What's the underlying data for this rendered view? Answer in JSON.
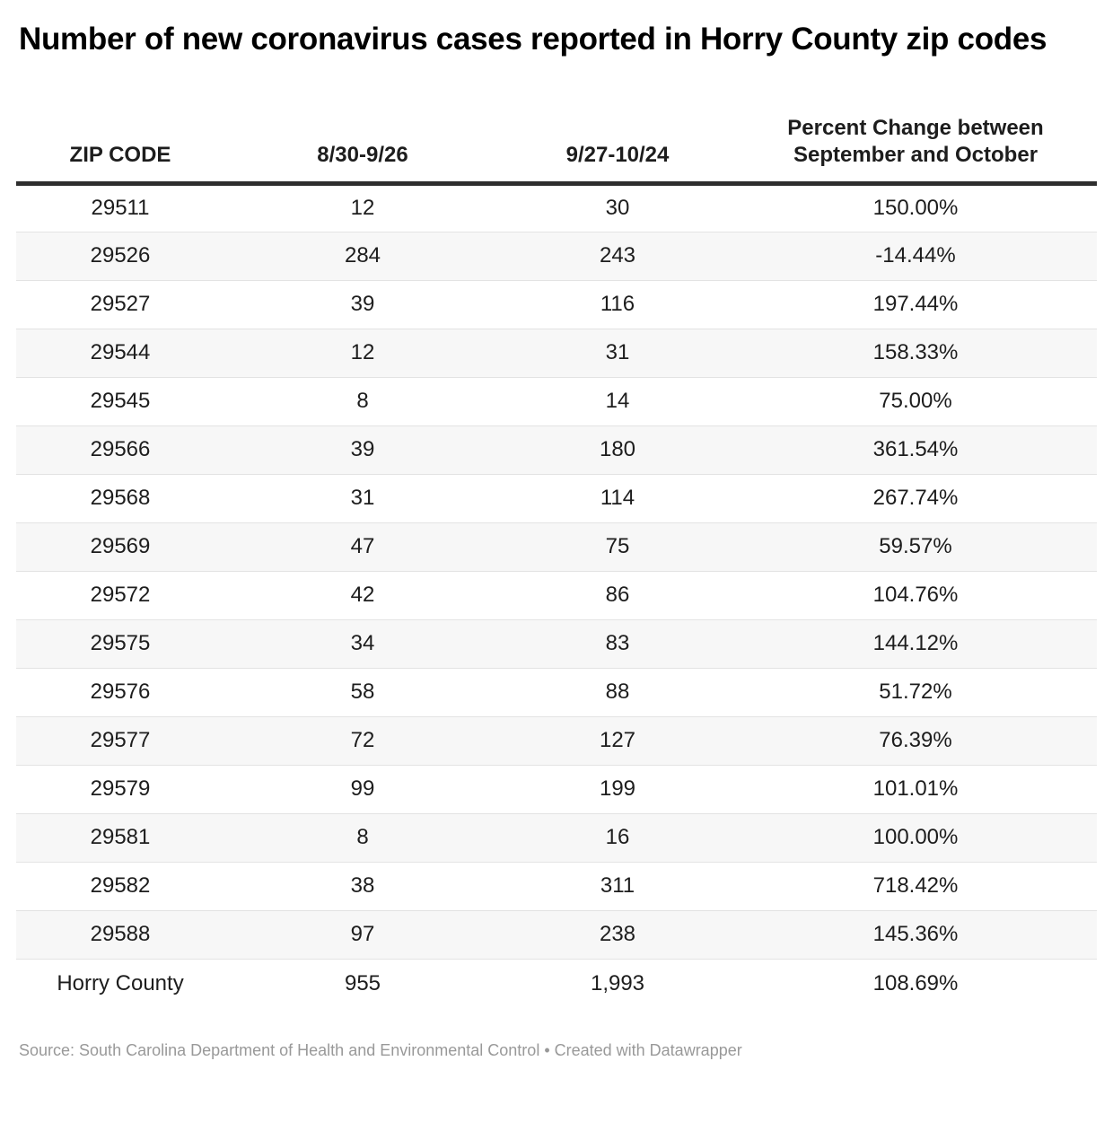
{
  "title": "Number of new coronavirus cases reported in Horry County zip codes",
  "chart_data": {
    "type": "table",
    "title": "Number of new coronavirus cases reported in Horry County zip codes",
    "columns": [
      "ZIP CODE",
      "8/30-9/26",
      "9/27-10/24",
      "Percent Change between September and October"
    ],
    "rows": [
      [
        "29511",
        "12",
        "30",
        "150.00%"
      ],
      [
        "29526",
        "284",
        "243",
        "-14.44%"
      ],
      [
        "29527",
        "39",
        "116",
        "197.44%"
      ],
      [
        "29544",
        "12",
        "31",
        "158.33%"
      ],
      [
        "29545",
        "8",
        "14",
        "75.00%"
      ],
      [
        "29566",
        "39",
        "180",
        "361.54%"
      ],
      [
        "29568",
        "31",
        "114",
        "267.74%"
      ],
      [
        "29569",
        "47",
        "75",
        "59.57%"
      ],
      [
        "29572",
        "42",
        "86",
        "104.76%"
      ],
      [
        "29575",
        "34",
        "83",
        "144.12%"
      ],
      [
        "29576",
        "58",
        "88",
        "51.72%"
      ],
      [
        "29577",
        "72",
        "127",
        "76.39%"
      ],
      [
        "29579",
        "99",
        "199",
        "101.01%"
      ],
      [
        "29581",
        "8",
        "16",
        "100.00%"
      ],
      [
        "29582",
        "38",
        "311",
        "718.42%"
      ],
      [
        "29588",
        "97",
        "238",
        "145.36%"
      ],
      [
        "Horry County",
        "955",
        "1,993",
        "108.69%"
      ]
    ],
    "layout": {
      "striped_rows": true,
      "stripe_on_even_rows": true,
      "header_rule": true,
      "cell_alignment": "center"
    }
  },
  "footer": {
    "text": "Source: South Carolina Department of Health and Environmental Control • Created with Datawrapper"
  },
  "colors": {
    "text": "#1d1d1d",
    "title": "#000000",
    "rule": "#2e2e2e",
    "row-border": "#e3e3e3",
    "stripe": "#f7f7f7",
    "footer": "#999999",
    "bg": "#ffffff"
  }
}
